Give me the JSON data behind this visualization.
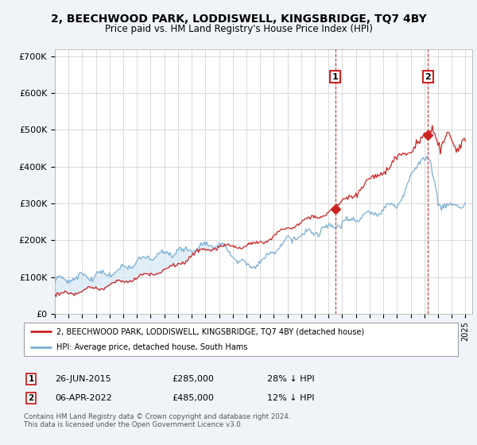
{
  "title": "2, BEECHWOOD PARK, LODDISWELL, KINGSBRIDGE, TQ7 4BY",
  "subtitle": "Price paid vs. HM Land Registry's House Price Index (HPI)",
  "hpi_color": "#7bafd4",
  "price_color": "#cc2222",
  "fill_color": "#d6e8f5",
  "background_color": "#f0f4f8",
  "plot_bg": "#ffffff",
  "ylim": [
    0,
    720000
  ],
  "yticks": [
    0,
    100000,
    200000,
    300000,
    400000,
    500000,
    600000,
    700000
  ],
  "ytick_labels": [
    "£0",
    "£100K",
    "£200K",
    "£300K",
    "£400K",
    "£500K",
    "£600K",
    "£700K"
  ],
  "sale1_date": "26-JUN-2015",
  "sale1_price": 285000,
  "sale1_label": "1",
  "sale1_x": 2015.49,
  "sale2_date": "06-APR-2022",
  "sale2_price": 485000,
  "sale2_label": "2",
  "sale2_x": 2022.27,
  "legend_line1": "2, BEECHWOOD PARK, LODDISWELL, KINGSBRIDGE, TQ7 4BY (detached house)",
  "legend_line2": "HPI: Average price, detached house, South Hams",
  "footnote1": "Contains HM Land Registry data © Crown copyright and database right 2024.",
  "footnote2": "This data is licensed under the Open Government Licence v3.0.",
  "table_row1": [
    "1",
    "26-JUN-2015",
    "£285,000",
    "28% ↓ HPI"
  ],
  "table_row2": [
    "2",
    "06-APR-2022",
    "£485,000",
    "12% ↓ HPI"
  ]
}
